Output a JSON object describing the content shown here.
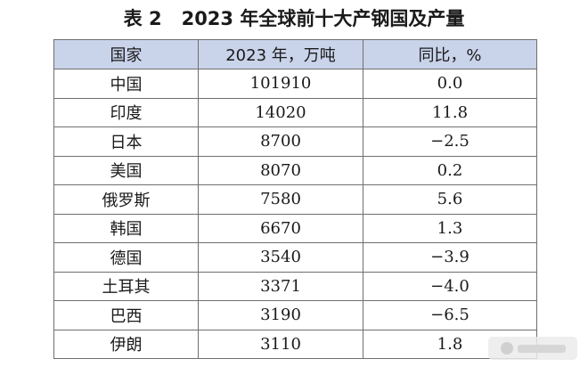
{
  "caption": {
    "label": "表 2",
    "title": "2023 年全球前十大产钢国及产量"
  },
  "table": {
    "headers": [
      "国家",
      "2023 年，万吨",
      "同比，%"
    ],
    "rows": [
      {
        "country": "中国",
        "output": "101910",
        "yoy": "0.0"
      },
      {
        "country": "印度",
        "output": "14020",
        "yoy": "11.8"
      },
      {
        "country": "日本",
        "output": "8700",
        "yoy": "−2.5"
      },
      {
        "country": "美国",
        "output": "8070",
        "yoy": "0.2"
      },
      {
        "country": "俄罗斯",
        "output": "7580",
        "yoy": "5.6"
      },
      {
        "country": "韩国",
        "output": "6670",
        "yoy": "1.3"
      },
      {
        "country": "德国",
        "output": "3540",
        "yoy": "−3.9"
      },
      {
        "country": "土耳其",
        "output": "3371",
        "yoy": "−4.0"
      },
      {
        "country": "巴西",
        "output": "3190",
        "yoy": "−6.5"
      },
      {
        "country": "伊朗",
        "output": "3110",
        "yoy": "1.8"
      }
    ]
  },
  "colors": {
    "header_background": "#c9d3ea",
    "border": "#6f6f6f",
    "text": "#1a1a1a"
  }
}
